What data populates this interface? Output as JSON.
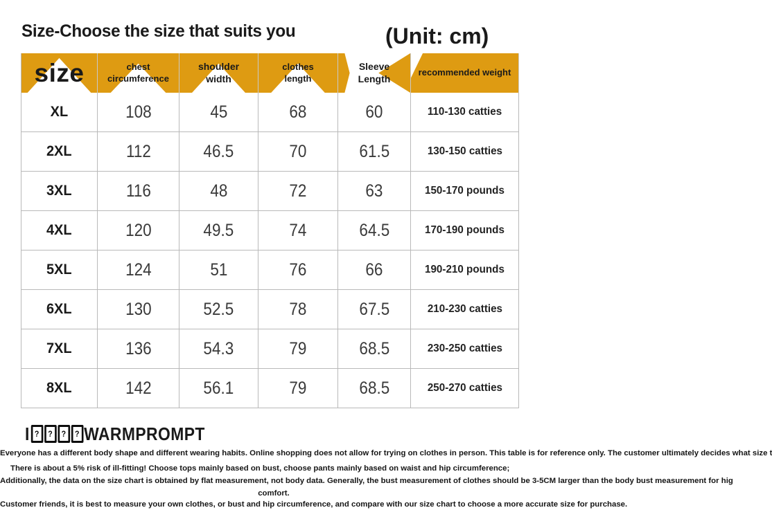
{
  "page": {
    "title": "Size-Choose the size that suits you",
    "unit_label": "(Unit: cm)"
  },
  "table": {
    "headers": {
      "size": "size",
      "chest": "chest\ncircumference",
      "shoulder": "shoulder\nwidth",
      "clothes": "clothes\nlength",
      "sleeve": "Sleeve\nLength",
      "weight": "recommended weight"
    },
    "rows": [
      {
        "size": "XL",
        "chest": "108",
        "shoulder": "45",
        "clothes": "68",
        "sleeve": "60",
        "weight": "110-130 catties"
      },
      {
        "size": "2XL",
        "chest": "112",
        "shoulder": "46.5",
        "clothes": "70",
        "sleeve": "61.5",
        "weight": "130-150 catties"
      },
      {
        "size": "3XL",
        "chest": "116",
        "shoulder": "48",
        "clothes": "72",
        "sleeve": "63",
        "weight": "150-170 pounds"
      },
      {
        "size": "4XL",
        "chest": "120",
        "shoulder": "49.5",
        "clothes": "74",
        "sleeve": "64.5",
        "weight": "170-190 pounds"
      },
      {
        "size": "5XL",
        "chest": "124",
        "shoulder": "51",
        "clothes": "76",
        "sleeve": "66",
        "weight": "190-210 pounds"
      },
      {
        "size": "6XL",
        "chest": "130",
        "shoulder": "52.5",
        "clothes": "78",
        "sleeve": "67.5",
        "weight": "210-230 catties"
      },
      {
        "size": "7XL",
        "chest": "136",
        "shoulder": "54.3",
        "clothes": "79",
        "sleeve": "68.5",
        "weight": "230-250 catties"
      },
      {
        "size": "8XL",
        "chest": "142",
        "shoulder": "56.1",
        "clothes": "79",
        "sleeve": "68.5",
        "weight": "250-270 catties"
      }
    ]
  },
  "warm_prompt": {
    "prefix": "I",
    "box_glyph": "?",
    "heading": "WARMPROMPT"
  },
  "notes": {
    "line1": "Everyone has a different body shape and different wearing habits. Online shopping does not allow for trying on clothes in person. This table is for reference only. The customer ultimately decides what size t",
    "line2": "There is about a 5% risk of ill-fitting! Choose tops mainly based on bust, choose pants mainly based on waist and hip circumference;",
    "line3": "Additionally, the data on the size chart is obtained by flat measurement, not body data. Generally, the bust measurement of clothes should be 3-5CM larger than the body bust measurement for hig",
    "line4": "comfort.",
    "line5": "Customer friends, it is best to measure your own clothes, or bust and hip circumference, and compare with our size chart to choose a more accurate size for purchase."
  },
  "colors": {
    "header_orange": "#DE9B12",
    "fold_shadow": "#965F05",
    "grid_line": "#B9B9B9",
    "text": "#1A1A1A"
  }
}
